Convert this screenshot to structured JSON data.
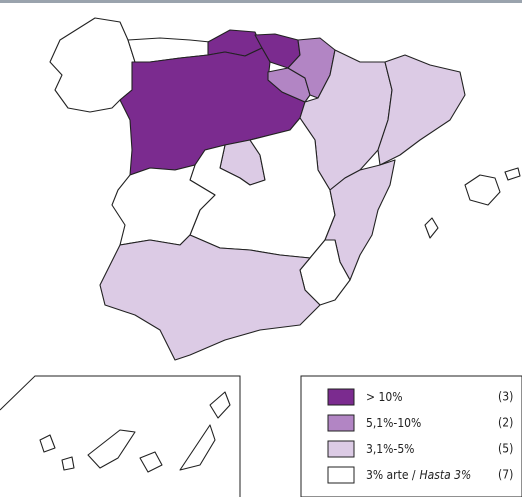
{
  "legend": {
    "items": [
      {
        "label": "> 10%",
        "count": "(3)"
      },
      {
        "label": "5,1%-10%",
        "count": "(2)"
      },
      {
        "label": "3,1%-5%",
        "count": "(5)"
      },
      {
        "label": "3% arte /",
        "label_italic": "Hasta 3%",
        "count": "(7)"
      }
    ]
  }
}
